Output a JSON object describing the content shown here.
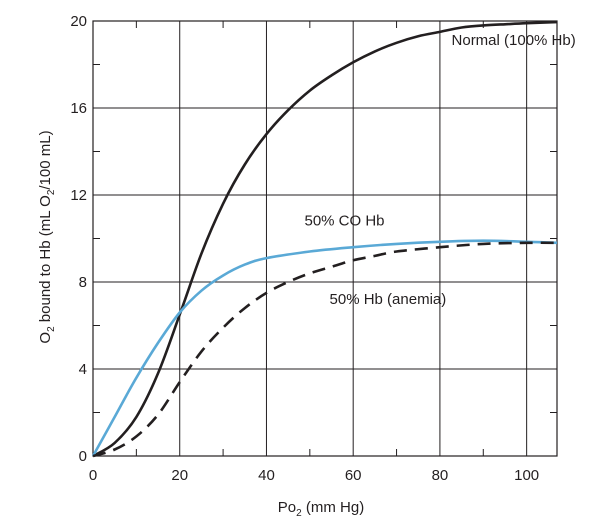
{
  "chart_data": {
    "type": "line",
    "xlabel": {
      "main": "Po",
      "sub": "2",
      "rest": " (mm Hg)"
    },
    "ylabel": {
      "p1": "O",
      "s1": "2",
      "p2": " bound to Hb (mL O",
      "s2": "2",
      "p3": "/100 mL)"
    },
    "xlim": [
      0,
      107
    ],
    "ylim": [
      0,
      20
    ],
    "x_ticks": [
      0,
      20,
      40,
      60,
      80,
      100
    ],
    "y_ticks": [
      0,
      4,
      8,
      12,
      16,
      20
    ],
    "grid": true,
    "colors": {
      "normal": "#231f20",
      "co": "#5aa9d6",
      "anemia": "#231f20",
      "grid": "#231f20"
    },
    "series": [
      {
        "name": "Normal (100% Hb)",
        "style": "solid",
        "x": [
          0,
          5,
          10,
          15,
          20,
          25,
          30,
          35,
          40,
          45,
          50,
          55,
          60,
          65,
          70,
          75,
          80,
          85,
          90,
          95,
          100,
          107
        ],
        "y": [
          0,
          0.6,
          1.8,
          3.8,
          6.5,
          9.3,
          11.6,
          13.4,
          14.8,
          15.9,
          16.8,
          17.5,
          18.1,
          18.6,
          19.0,
          19.3,
          19.5,
          19.7,
          19.8,
          19.85,
          19.9,
          19.95
        ]
      },
      {
        "name": "50% CO Hb",
        "style": "solid",
        "x": [
          0,
          5,
          10,
          15,
          20,
          25,
          30,
          35,
          40,
          50,
          60,
          70,
          80,
          90,
          100,
          107
        ],
        "y": [
          0,
          1.8,
          3.6,
          5.2,
          6.6,
          7.6,
          8.3,
          8.8,
          9.1,
          9.4,
          9.6,
          9.75,
          9.85,
          9.9,
          9.85,
          9.8
        ]
      },
      {
        "name": "50% Hb (anemia)",
        "style": "dashed",
        "x": [
          0,
          5,
          10,
          15,
          20,
          25,
          30,
          35,
          40,
          45,
          50,
          55,
          60,
          65,
          70,
          80,
          90,
          100,
          107
        ],
        "y": [
          0,
          0.3,
          0.9,
          1.9,
          3.4,
          4.8,
          5.9,
          6.8,
          7.5,
          8.0,
          8.4,
          8.7,
          9.0,
          9.2,
          9.4,
          9.6,
          9.75,
          9.8,
          9.8
        ]
      }
    ],
    "annotations": [
      {
        "text": "Normal (100% Hb)",
        "x": 97,
        "y": 18.9
      },
      {
        "text": "50% CO Hb",
        "x": 58,
        "y": 10.6
      },
      {
        "text": "50% Hb (anemia)",
        "x": 68,
        "y": 7.0
      }
    ]
  }
}
